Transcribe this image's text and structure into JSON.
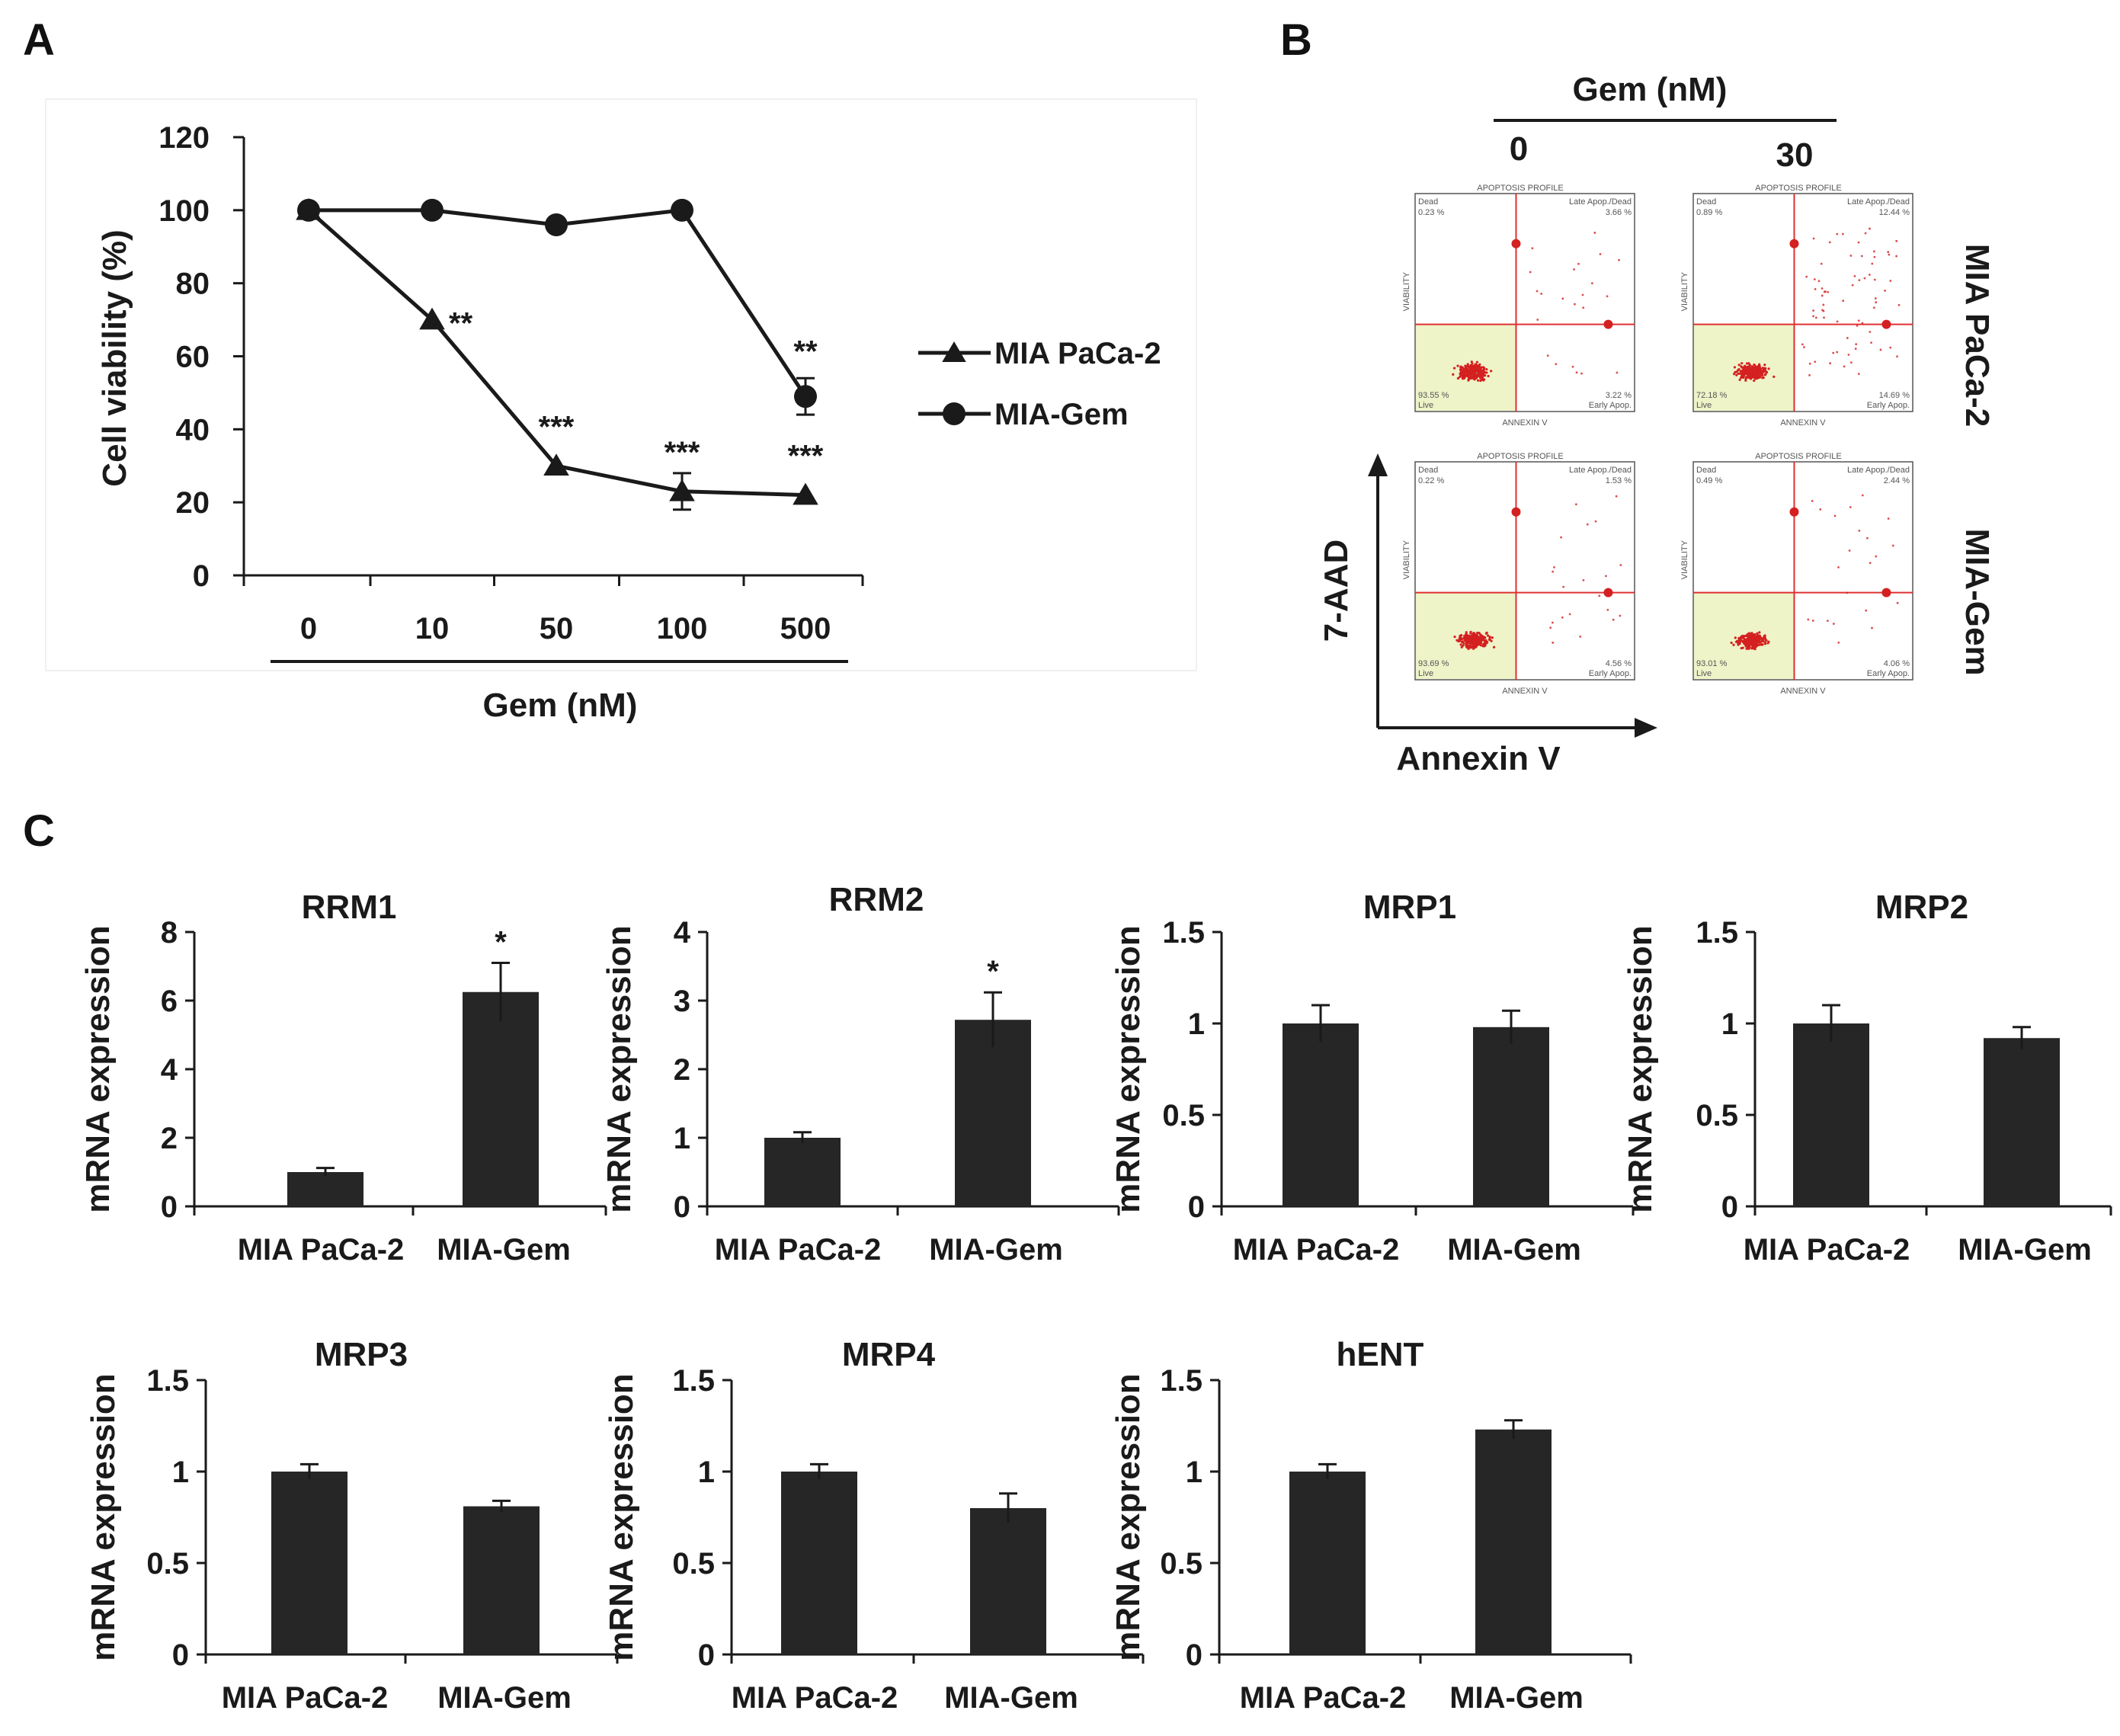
{
  "panels": {
    "a": "A",
    "b": "B",
    "c": "C"
  },
  "chart_data": [
    {
      "id": "viability",
      "type": "line",
      "title": "",
      "xlabel": "Gem (nM)",
      "ylabel": "Cell viability (%)",
      "categories": [
        "0",
        "10",
        "50",
        "100",
        "500"
      ],
      "ylim": [
        0,
        120
      ],
      "yticks": [
        0,
        20,
        40,
        60,
        80,
        100,
        120
      ],
      "series": [
        {
          "name": "MIA PaCa-2",
          "marker": "triangle",
          "values": [
            100,
            70,
            30,
            23,
            22
          ],
          "errors": [
            0,
            0,
            0,
            5,
            0
          ],
          "significance": [
            "",
            "**",
            "***",
            "***",
            "***"
          ]
        },
        {
          "name": "MIA-Gem",
          "marker": "circle",
          "values": [
            100,
            100,
            96,
            100,
            49
          ],
          "errors": [
            0,
            0,
            0,
            0,
            5
          ],
          "significance": [
            "",
            "",
            "",
            "",
            "**"
          ]
        }
      ],
      "legend": [
        "MIA PaCa-2",
        "MIA-Gem"
      ]
    },
    {
      "id": "RRM1",
      "type": "bar",
      "title": "RRM1",
      "ylabel": "mRNA expression",
      "categories": [
        "MIA PaCa-2",
        "MIA-Gem"
      ],
      "values": [
        1.0,
        6.25
      ],
      "errors": [
        0.12,
        0.85
      ],
      "significance": [
        "",
        "*"
      ],
      "ylim": [
        0,
        8
      ],
      "yticks": [
        "0",
        "2",
        "4",
        "6",
        "8"
      ]
    },
    {
      "id": "RRM2",
      "type": "bar",
      "title": "RRM2",
      "ylabel": "mRNA expression",
      "categories": [
        "MIA PaCa-2",
        "MIA-Gem"
      ],
      "values": [
        1.0,
        2.72
      ],
      "errors": [
        0.08,
        0.4
      ],
      "significance": [
        "",
        "*"
      ],
      "ylim": [
        0,
        4
      ],
      "yticks": [
        "0",
        "1",
        "2",
        "3",
        "4"
      ]
    },
    {
      "id": "MRP1",
      "type": "bar",
      "title": "MRP1",
      "ylabel": "mRNA expression",
      "categories": [
        "MIA PaCa-2",
        "MIA-Gem"
      ],
      "values": [
        1.0,
        0.98
      ],
      "errors": [
        0.1,
        0.09
      ],
      "significance": [
        "",
        ""
      ],
      "ylim": [
        0,
        1.5
      ],
      "yticks": [
        "0",
        "0.5",
        "1",
        "1.5"
      ]
    },
    {
      "id": "MRP2",
      "type": "bar",
      "title": "MRP2",
      "ylabel": "mRNA expression",
      "categories": [
        "MIA PaCa-2",
        "MIA-Gem"
      ],
      "values": [
        1.0,
        0.92
      ],
      "errors": [
        0.1,
        0.06
      ],
      "significance": [
        "",
        ""
      ],
      "ylim": [
        0,
        1.5
      ],
      "yticks": [
        "0",
        "0.5",
        "1",
        "1.5"
      ]
    },
    {
      "id": "MRP3",
      "type": "bar",
      "title": "MRP3",
      "ylabel": "mRNA expression",
      "categories": [
        "MIA PaCa-2",
        "MIA-Gem"
      ],
      "values": [
        1.0,
        0.81
      ],
      "errors": [
        0.04,
        0.03
      ],
      "significance": [
        "",
        ""
      ],
      "ylim": [
        0,
        1.5
      ],
      "yticks": [
        "0",
        "0.5",
        "1",
        "1.5"
      ]
    },
    {
      "id": "MRP4",
      "type": "bar",
      "title": "MRP4",
      "ylabel": "mRNA expression",
      "categories": [
        "MIA PaCa-2",
        "MIA-Gem"
      ],
      "values": [
        1.0,
        0.8
      ],
      "errors": [
        0.04,
        0.08
      ],
      "significance": [
        "",
        ""
      ],
      "ylim": [
        0,
        1.5
      ],
      "yticks": [
        "0",
        "0.5",
        "1",
        "1.5"
      ]
    },
    {
      "id": "hENT",
      "type": "bar",
      "title": "hENT",
      "ylabel": "mRNA expression",
      "categories": [
        "MIA PaCa-2",
        "MIA-Gem"
      ],
      "values": [
        1.0,
        1.23
      ],
      "errors": [
        0.04,
        0.05
      ],
      "significance": [
        "",
        ""
      ],
      "ylim": [
        0,
        1.5
      ],
      "yticks": [
        "0",
        "0.5",
        "1",
        "1.5"
      ]
    }
  ],
  "flow": {
    "header": "Gem (nM)",
    "columns": [
      "0",
      "30"
    ],
    "rows": [
      "MIA PaCa-2",
      "MIA-Gem"
    ],
    "y_axis": "7-AAD",
    "x_axis": "Annexin V",
    "plot_title": "APOPTOSIS PROFILE",
    "plot_xlabel": "ANNEXIN V",
    "plot_ylabel": "VIABILITY",
    "quadrant_names": {
      "dead": "Dead",
      "late": "Late Apop./Dead",
      "live": "Live",
      "early": "Early Apop."
    },
    "plots": [
      {
        "name": "MIA PaCa-2 0 nM",
        "dead": "0.23 %",
        "late": "3.66 %",
        "live": "93.55 %",
        "early": "3.22 %"
      },
      {
        "name": "MIA PaCa-2 30 nM",
        "dead": "0.89 %",
        "late": "12.44 %",
        "live": "72.18 %",
        "early": "14.69 %"
      },
      {
        "name": "MIA-Gem 0 nM",
        "dead": "0.22 %",
        "late": "1.53 %",
        "live": "93.69 %",
        "early": "4.56 %"
      },
      {
        "name": "MIA-Gem 30 nM",
        "dead": "0.49 %",
        "late": "2.44 %",
        "live": "93.01 %",
        "early": "4.06 %"
      }
    ]
  },
  "colors": {
    "ink": "#1a1a1a",
    "bar": "#262626",
    "quadrant_line": "#e03030",
    "live_fill": "#eef3c8",
    "dots": "#d42020"
  }
}
